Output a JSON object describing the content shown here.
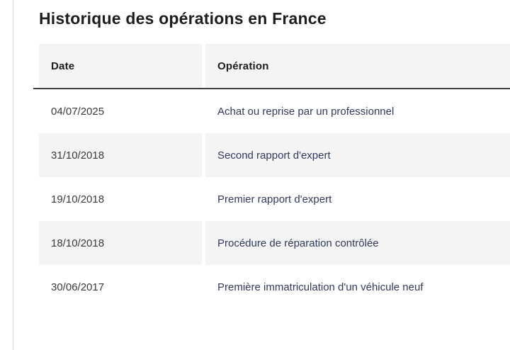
{
  "page": {
    "title": "Historique des opérations en France"
  },
  "table": {
    "columns": [
      {
        "label": "Date"
      },
      {
        "label": "Opération"
      }
    ],
    "rows": [
      {
        "date": "04/07/2025",
        "operation": "Achat ou reprise par un professionnel"
      },
      {
        "date": "31/10/2018",
        "operation": "Second rapport d'expert"
      },
      {
        "date": "19/10/2018",
        "operation": "Premier rapport d'expert"
      },
      {
        "date": "18/10/2018",
        "operation": "Procédure de réparation contrôlée"
      },
      {
        "date": "30/06/2017",
        "operation": "Première immatriculation d'un véhicule neuf"
      }
    ]
  },
  "colors": {
    "title_text": "#1d1d1d",
    "date_text": "#3a3a3a",
    "operation_text": "#32395c",
    "stripe_background": "#f4f4f4",
    "header_underline": "#3e3e3e",
    "left_rule": "#d9d9d9",
    "page_background": "#ffffff"
  }
}
